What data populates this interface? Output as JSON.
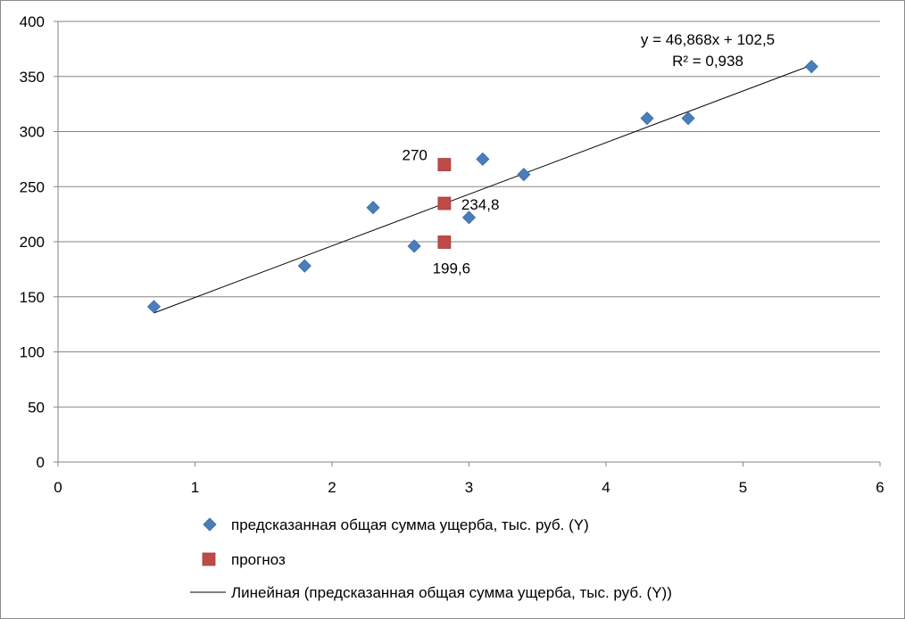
{
  "chart_data": {
    "type": "scatter",
    "xlim": [
      0,
      6
    ],
    "ylim": [
      0,
      400
    ],
    "x_ticks": [
      0,
      1,
      2,
      3,
      4,
      5,
      6
    ],
    "y_ticks": [
      0,
      50,
      100,
      150,
      200,
      250,
      300,
      350,
      400
    ],
    "grid": "horizontal",
    "legend_position": "bottom",
    "series": [
      {
        "name": "предсказанная общая сумма ущерба, тыс. руб. (Y)",
        "marker": "diamond",
        "color": "#4a7ebb",
        "points": [
          {
            "x": 0.7,
            "y": 141
          },
          {
            "x": 1.8,
            "y": 178
          },
          {
            "x": 2.3,
            "y": 231
          },
          {
            "x": 2.6,
            "y": 196
          },
          {
            "x": 3.0,
            "y": 222
          },
          {
            "x": 3.1,
            "y": 275
          },
          {
            "x": 3.4,
            "y": 261
          },
          {
            "x": 4.3,
            "y": 312
          },
          {
            "x": 4.6,
            "y": 312
          },
          {
            "x": 5.5,
            "y": 359
          }
        ]
      },
      {
        "name": "прогноз",
        "marker": "square",
        "color": "#be4b48",
        "points": [
          {
            "x": 2.82,
            "y": 270,
            "label": "270"
          },
          {
            "x": 2.82,
            "y": 234.8,
            "label": "234,8"
          },
          {
            "x": 2.82,
            "y": 199.6,
            "label": "199,6"
          }
        ]
      }
    ],
    "trendline": {
      "name": "Линейная (предсказанная общая сумма ущерба, тыс. руб. (Y))",
      "slope": 46.868,
      "intercept": 102.5,
      "x_range": [
        0.7,
        5.5
      ],
      "color": "#000000",
      "equation": "y = 46,868x + 102,5",
      "r2": "R² = 0,938"
    }
  }
}
